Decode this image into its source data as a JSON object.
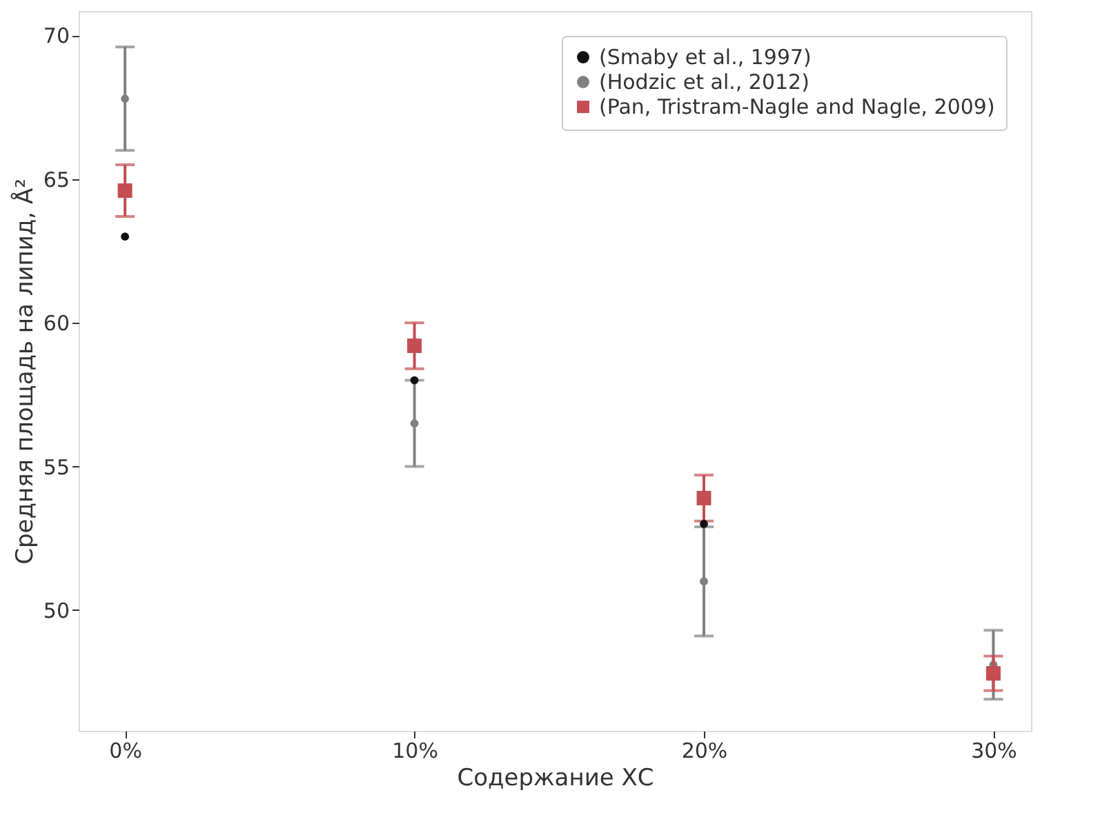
{
  "chart_data": {
    "type": "scatter",
    "xlabel": "Содержание ХС",
    "ylabel": "Средняя площадь на липид, Å²",
    "x": [
      0,
      10,
      20,
      30
    ],
    "xlim": [
      -1.6,
      31.3
    ],
    "xticks": [
      {
        "value": 0,
        "label": "0%"
      },
      {
        "value": 10,
        "label": "10%"
      },
      {
        "value": 20,
        "label": "20%"
      },
      {
        "value": 30,
        "label": "30%"
      }
    ],
    "ylim": [
      45.8,
      70.85
    ],
    "yticks": [
      50,
      55,
      60,
      65,
      70
    ],
    "grid": false,
    "legend": "top right",
    "series": [
      {
        "name": "(Smaby et al., 1997)",
        "color": "#111111",
        "marker": "circle",
        "values": [
          63,
          58,
          53,
          null
        ]
      },
      {
        "name": "(Hodzic et al., 2012)",
        "color": "#808080",
        "marker": "circle",
        "values": [
          67.8,
          56.5,
          51,
          48.1
        ],
        "errors": [
          1.8,
          1.5,
          1.9,
          1.2
        ]
      },
      {
        "name": "(Pan, Tristram-Nagle and Nagle, 2009)",
        "color": "#c44e52",
        "marker": "square",
        "values": [
          64.6,
          59.2,
          53.9,
          47.8
        ],
        "errors": [
          0.9,
          0.8,
          0.8,
          0.6
        ]
      }
    ]
  }
}
